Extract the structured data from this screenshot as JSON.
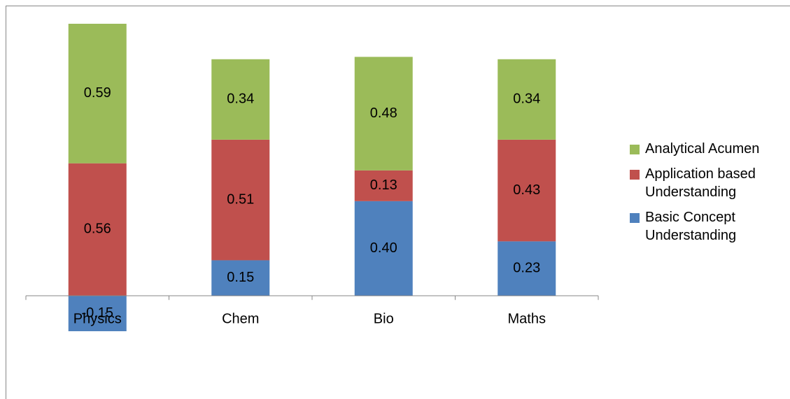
{
  "chart_data": {
    "type": "stacked-bar",
    "categories": [
      "Physics",
      "Chem",
      "Bio",
      "Maths"
    ],
    "series": [
      {
        "name": "Basic Concept Understanding",
        "color": "#4f81bd",
        "values": [
          -0.15,
          0.15,
          0.4,
          0.23
        ],
        "value_labels": [
          "-0.15",
          "0.15",
          "0.40",
          "0.23"
        ]
      },
      {
        "name": "Application based Understanding",
        "color": "#c0504d",
        "values": [
          0.56,
          0.51,
          0.13,
          0.43
        ],
        "value_labels": [
          "0.56",
          "0.51",
          "0.13",
          "0.43"
        ]
      },
      {
        "name": "Analytical Acumen",
        "color": "#9bbb59",
        "values": [
          0.59,
          0.34,
          0.48,
          0.34
        ],
        "value_labels": [
          "0.59",
          "0.34",
          "0.48",
          "0.34"
        ]
      }
    ],
    "legend": "right"
  }
}
